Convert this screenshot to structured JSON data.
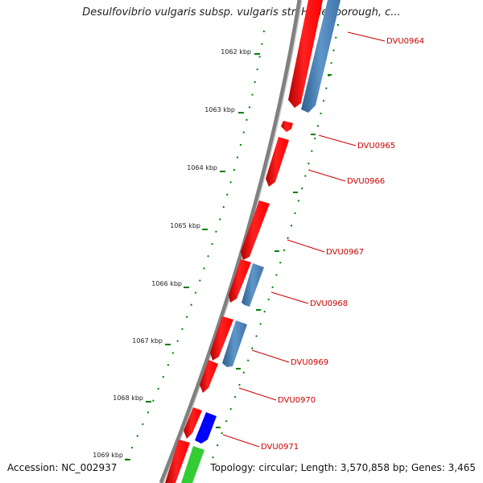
{
  "title": "Desulfovibrio vulgaris subsp. vulgaris str. Hildenborough, c...",
  "accession": "Accession: NC_002937",
  "topology": "Topology: circular; Length: 3,570,858 bp; Genes: 3,465",
  "scale_labels": [
    "1062 kbp",
    "1063 kbp",
    "1064 kbp",
    "1065 kbp",
    "1066 kbp",
    "1067 kbp",
    "1068 kbp",
    "1069 kbp"
  ],
  "gene_labels": [
    "DVU0964",
    "DVU0965",
    "DVU0966",
    "DVU0967",
    "DVU0968",
    "DVU0969",
    "DVU0970",
    "DVU0971"
  ],
  "colors": {
    "backbone": "#808080",
    "forward_gene": "#ff0000",
    "reverse_gene": "#4f86bd",
    "highlight_gene_blue": "#0000ff",
    "highlight_gene_green": "#33cc33",
    "scale_ticks": "#008000",
    "label_text": "#cc0000"
  }
}
